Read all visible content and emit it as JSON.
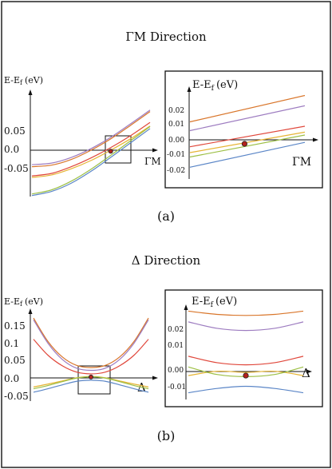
{
  "figure": {
    "panel_a": {
      "title": "ΓM Direction",
      "caption": "(a)",
      "main": {
        "ylabel": "E-E",
        "ylabel_sub": "f",
        "ylabel_unit": "(eV)",
        "xlabel": "ΓM",
        "yticks": [
          "0.05",
          "0.0",
          "-0.05"
        ]
      },
      "inset": {
        "ylabel": "E-E",
        "ylabel_sub": "f",
        "ylabel_unit": "(eV)",
        "xlabel": "ΓM",
        "yticks": [
          "0.02",
          "0.01",
          "0.00",
          "-0.01",
          "-0.02"
        ]
      }
    },
    "panel_b": {
      "title": "Δ Direction",
      "caption": "(b)",
      "main": {
        "ylabel": "E-E",
        "ylabel_sub": "f",
        "ylabel_unit": "(eV)",
        "xlabel": "Δ",
        "yticks": [
          "0.15",
          "0.1",
          "0.05",
          "0.0",
          "-0.05"
        ]
      },
      "inset": {
        "ylabel": "E-E",
        "ylabel_sub": "f",
        "ylabel_unit": "(eV)",
        "xlabel": "Δ",
        "yticks": [
          "0.02",
          "0.01",
          "0.00",
          "-0.01"
        ]
      }
    }
  },
  "colors": {
    "orange": "#d9762b",
    "purple": "#9d7cc0",
    "red": "#e0473b",
    "yellow": "#e6b433",
    "green": "#9cbf45",
    "blue": "#5b86c7",
    "point": "#b3221c"
  },
  "chart_data": [
    {
      "type": "line",
      "ylim": [
        -0.09,
        0.09
      ],
      "x": [
        -1.0,
        -0.75,
        -0.5,
        -0.25,
        0.0,
        0.25,
        0.5
      ],
      "series": [
        {
          "color": "orange",
          "values": [
            -0.032,
            -0.029,
            -0.018,
            0.0,
            0.022,
            0.048,
            0.075
          ]
        },
        {
          "color": "purple",
          "values": [
            -0.028,
            -0.025,
            -0.014,
            0.003,
            0.025,
            0.051,
            0.078
          ]
        },
        {
          "color": "red",
          "values": [
            -0.05,
            -0.045,
            -0.032,
            -0.015,
            0.005,
            0.028,
            0.054
          ]
        },
        {
          "color": "yellow",
          "values": [
            -0.053,
            -0.048,
            -0.036,
            -0.02,
            0.0,
            0.022,
            0.047
          ]
        },
        {
          "color": "green",
          "values": [
            -0.085,
            -0.077,
            -0.06,
            -0.037,
            -0.01,
            0.018,
            0.046
          ]
        },
        {
          "color": "blue",
          "values": [
            -0.088,
            -0.08,
            -0.064,
            -0.041,
            -0.014,
            0.014,
            0.042
          ]
        }
      ],
      "point": {
        "x": 0.0,
        "y": -0.002
      }
    },
    {
      "type": "line",
      "ylim": [
        -0.028,
        0.032
      ],
      "x": [
        -1.0,
        1.0
      ],
      "series": [
        {
          "color": "orange",
          "values": [
            0.011,
            0.029
          ]
        },
        {
          "color": "purple",
          "values": [
            0.005,
            0.022
          ]
        },
        {
          "color": "red",
          "values": [
            -0.006,
            0.008
          ]
        },
        {
          "color": "yellow",
          "values": [
            -0.01,
            0.004
          ]
        },
        {
          "color": "green",
          "values": [
            -0.013,
            0.002
          ]
        },
        {
          "color": "blue",
          "values": [
            -0.02,
            -0.003
          ]
        }
      ],
      "point": {
        "x": -0.05,
        "y": -0.004
      }
    },
    {
      "type": "line",
      "ylim": [
        -0.07,
        0.19
      ],
      "x": [
        -1.0,
        -0.75,
        -0.5,
        -0.25,
        0.0,
        0.25,
        0.5,
        0.75,
        1.0
      ],
      "series": [
        {
          "color": "orange",
          "values": [
            0.165,
            0.099,
            0.055,
            0.031,
            0.025,
            0.031,
            0.055,
            0.099,
            0.165
          ]
        },
        {
          "color": "purple",
          "values": [
            0.16,
            0.094,
            0.048,
            0.023,
            0.017,
            0.023,
            0.048,
            0.094,
            0.16
          ]
        },
        {
          "color": "red",
          "values": [
            0.105,
            0.06,
            0.03,
            0.012,
            0.007,
            0.012,
            0.03,
            0.06,
            0.105
          ]
        },
        {
          "color": "yellow",
          "values": [
            -0.03,
            -0.022,
            -0.013,
            -0.004,
            0.0,
            -0.004,
            -0.013,
            -0.022,
            -0.03
          ]
        },
        {
          "color": "green",
          "values": [
            -0.035,
            -0.026,
            -0.015,
            -0.005,
            -0.001,
            -0.005,
            -0.015,
            -0.026,
            -0.035
          ]
        },
        {
          "color": "blue",
          "values": [
            -0.045,
            -0.035,
            -0.024,
            -0.014,
            -0.011,
            -0.014,
            -0.024,
            -0.035,
            -0.045
          ]
        }
      ],
      "point": {
        "x": 0.0,
        "y": -0.002
      }
    },
    {
      "type": "line",
      "ylim": [
        -0.016,
        0.032
      ],
      "x": [
        -1.0,
        -0.5,
        0.0,
        0.5,
        1.0
      ],
      "series": [
        {
          "color": "orange",
          "values": [
            0.027,
            0.0255,
            0.025,
            0.0255,
            0.027
          ]
        },
        {
          "color": "purple",
          "values": [
            0.022,
            0.019,
            0.018,
            0.019,
            0.022
          ]
        },
        {
          "color": "red",
          "values": [
            0.006,
            0.003,
            0.002,
            0.003,
            0.006
          ]
        },
        {
          "color": "yellow",
          "values": [
            -0.003,
            -0.001,
            -0.0015,
            -0.001,
            -0.003
          ]
        },
        {
          "color": "green",
          "values": [
            0.001,
            -0.0025,
            -0.0035,
            -0.0025,
            0.001
          ]
        },
        {
          "color": "blue",
          "values": [
            -0.011,
            -0.009,
            -0.008,
            -0.009,
            -0.011
          ]
        }
      ],
      "point": {
        "x": 0.0,
        "y": -0.003
      }
    }
  ]
}
